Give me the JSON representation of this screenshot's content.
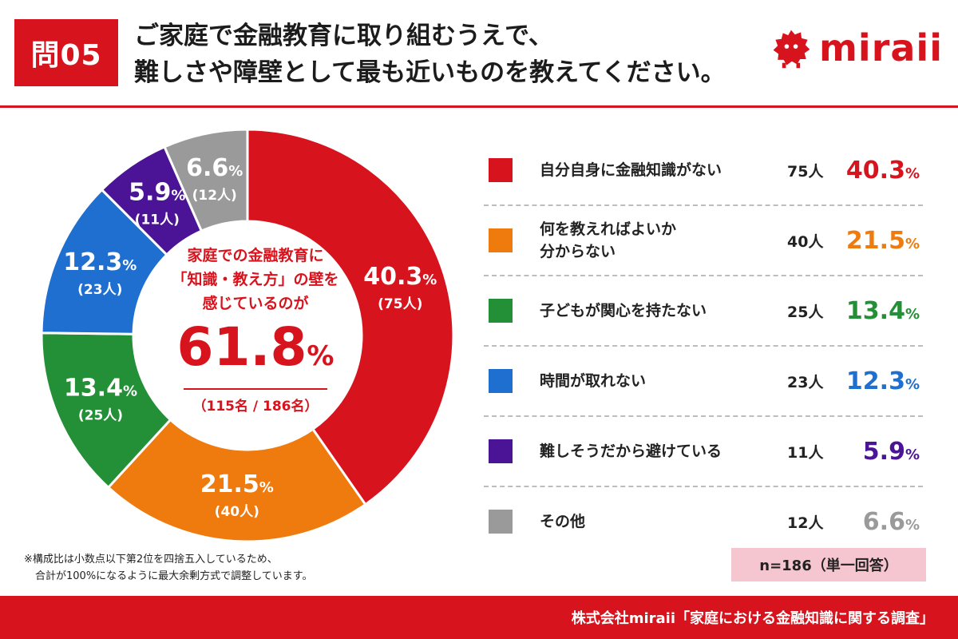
{
  "header": {
    "badge": "問05",
    "title_line1": "ご家庭で金融教育に取り組むうえで、",
    "title_line2": "難しさや障壁として最も近いものを教えてください。",
    "logo_text": "miraii"
  },
  "center": {
    "line1": "家庭での金融教育に",
    "line2": "「知識・教え方」の壁を",
    "line3": "感じているのが",
    "big_value": "61.8",
    "big_unit": "%",
    "count": "（115名 / 186名）"
  },
  "chart_data": {
    "type": "pie",
    "donut": true,
    "unit": "%",
    "categories": [
      "自分自身に金融知識がない",
      "何を教えればよいか分からない",
      "子どもが関心を持たない",
      "時間が取れない",
      "難しそうだから避けている",
      "その他"
    ],
    "values": [
      40.3,
      21.5,
      13.4,
      12.3,
      5.9,
      6.6
    ],
    "counts": [
      75,
      40,
      25,
      23,
      11,
      12
    ],
    "colors": [
      "#d7141d",
      "#ef7b0f",
      "#238f36",
      "#1e6fcf",
      "#4b1396",
      "#9a9a9a"
    ],
    "slice_pct_labels": [
      "40.3",
      "21.5",
      "13.4",
      "12.3",
      "5.9",
      "6.6"
    ],
    "slice_count_labels": [
      "(75人)",
      "(40人)",
      "(25人)",
      "(23人)",
      "(11人)",
      "(12人)"
    ]
  },
  "legend": [
    {
      "label_lines": [
        "自分自身に金融知識がない"
      ],
      "count": "75人",
      "pct": "40.3",
      "color": "#d7141d"
    },
    {
      "label_lines": [
        "何を教えればよいか",
        "分からない"
      ],
      "count": "40人",
      "pct": "21.5",
      "color": "#ef7b0f"
    },
    {
      "label_lines": [
        "子どもが関心を持たない"
      ],
      "count": "25人",
      "pct": "13.4",
      "color": "#238f36"
    },
    {
      "label_lines": [
        "時間が取れない"
      ],
      "count": "23人",
      "pct": "12.3",
      "color": "#1e6fcf"
    },
    {
      "label_lines": [
        "難しそうだから避けている"
      ],
      "count": "11人",
      "pct": "5.9",
      "color": "#4b1396"
    },
    {
      "label_lines": [
        "その他"
      ],
      "count": "12人",
      "pct": "6.6",
      "color": "#9a9a9a"
    }
  ],
  "pct_sign": "%",
  "footer": {
    "note_line1": "※構成比は小数点以下第2位を四捨五入しているため、",
    "note_line2": "合計が100%になるように最大余剰方式で調整しています。",
    "sample": "n=186（単一回答）",
    "source": "株式会社miraii「家庭における金融知識に関する調査」"
  }
}
